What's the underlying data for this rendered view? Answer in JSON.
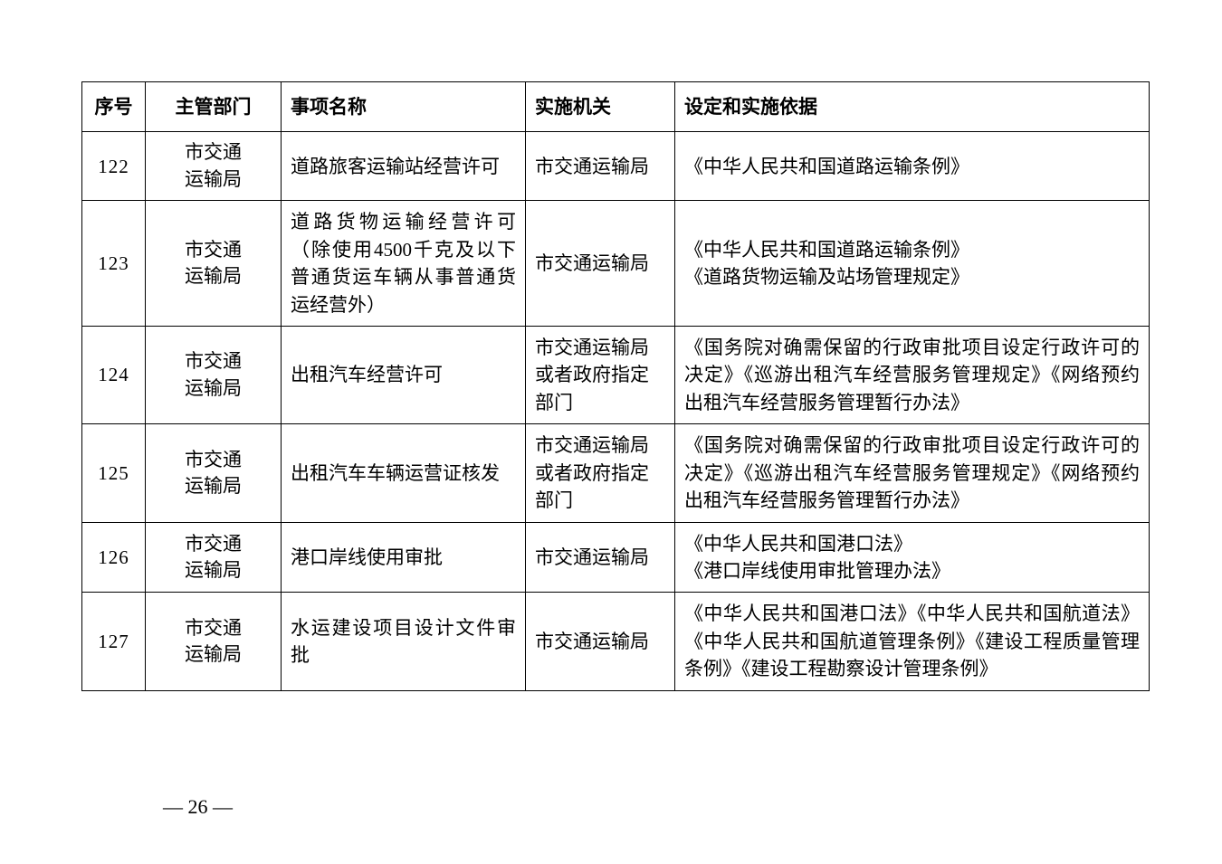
{
  "table": {
    "columns": {
      "seq": "序号",
      "dept": "主管部门",
      "name": "事项名称",
      "org": "实施机关",
      "basis": "设定和实施依据"
    },
    "rows": [
      {
        "seq": "122",
        "dept": "市交通\n运输局",
        "name": "道路旅客运输站经营许可",
        "org": "市交通运输局",
        "basis": "《中华人民共和国道路运输条例》"
      },
      {
        "seq": "123",
        "dept": "市交通\n运输局",
        "name": "道路货物运输经营许可（除使用4500千克及以下普通货运车辆从事普通货运经营外）",
        "org": "市交通运输局",
        "basis": "《中华人民共和国道路运输条例》\n《道路货物运输及站场管理规定》"
      },
      {
        "seq": "124",
        "dept": "市交通\n运输局",
        "name": "出租汽车经营许可",
        "org": "市交通运输局或者政府指定部门",
        "basis": "《国务院对确需保留的行政审批项目设定行政许可的决定》《巡游出租汽车经营服务管理规定》《网络预约出租汽车经营服务管理暂行办法》"
      },
      {
        "seq": "125",
        "dept": "市交通\n运输局",
        "name": "出租汽车车辆运营证核发",
        "org": "市交通运输局或者政府指定部门",
        "basis": "《国务院对确需保留的行政审批项目设定行政许可的决定》《巡游出租汽车经营服务管理规定》《网络预约出租汽车经营服务管理暂行办法》"
      },
      {
        "seq": "126",
        "dept": "市交通\n运输局",
        "name": "港口岸线使用审批",
        "org": "市交通运输局",
        "basis": "《中华人民共和国港口法》\n《港口岸线使用审批管理办法》"
      },
      {
        "seq": "127",
        "dept": "市交通\n运输局",
        "name": "水运建设项目设计文件审批",
        "org": "市交通运输局",
        "basis": "《中华人民共和国港口法》《中华人民共和国航道法》《中华人民共和国航道管理条例》《建设工程质量管理条例》《建设工程勘察设计管理条例》"
      }
    ]
  },
  "page_number": "— 26 —"
}
